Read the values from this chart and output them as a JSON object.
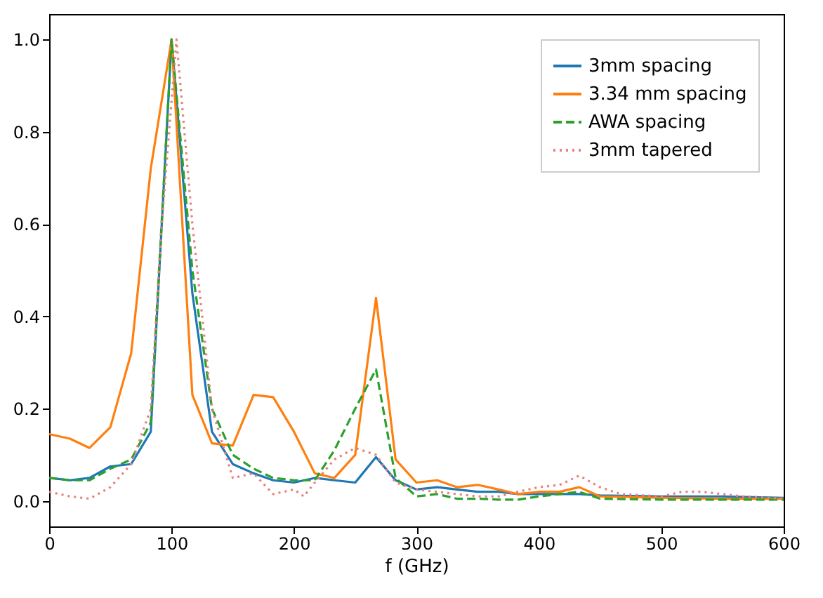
{
  "chart_data": {
    "type": "line",
    "xlabel": "f (GHz)",
    "xlim": [
      0,
      600
    ],
    "xticks": [
      0,
      100,
      200,
      300,
      400,
      500,
      600
    ],
    "ylim": [
      -0.055,
      1.055
    ],
    "yticks": [
      {
        "value": 0,
        "label": "0.0"
      },
      {
        "value": 0.2,
        "label": "0.2"
      },
      {
        "value": 0.4,
        "label": "0.4"
      },
      {
        "value": 0.6,
        "label": "0.6"
      },
      {
        "value": 0.8,
        "label": "0.8"
      },
      {
        "value": 1,
        "label": "1.0"
      }
    ],
    "legend": "top right",
    "grid": false,
    "series": [
      {
        "name": "3mm spacing",
        "color": "#1f77b4",
        "line_style": "solid",
        "x": [
          0,
          17,
          33,
          50,
          67,
          83,
          100,
          117,
          133,
          150,
          167,
          183,
          200,
          217,
          233,
          250,
          267,
          283,
          300,
          317,
          333,
          350,
          367,
          383,
          400,
          417,
          433,
          450,
          500,
          550,
          600
        ],
        "values": [
          0.05,
          0.045,
          0.05,
          0.075,
          0.08,
          0.15,
          1.0,
          0.45,
          0.15,
          0.08,
          0.06,
          0.045,
          0.04,
          0.05,
          0.045,
          0.04,
          0.095,
          0.045,
          0.025,
          0.03,
          0.025,
          0.02,
          0.02,
          0.015,
          0.015,
          0.015,
          0.015,
          0.012,
          0.01,
          0.01,
          0.007
        ]
      },
      {
        "name": "3.34 mm spacing",
        "color": "#ff7f0e",
        "line_style": "solid",
        "x": [
          0,
          17,
          33,
          50,
          67,
          83,
          100,
          117,
          133,
          150,
          167,
          183,
          200,
          217,
          233,
          250,
          267,
          283,
          300,
          317,
          333,
          350,
          367,
          383,
          400,
          417,
          433,
          450,
          500,
          550,
          600
        ],
        "values": [
          0.145,
          0.135,
          0.115,
          0.16,
          0.32,
          0.72,
          1.0,
          0.23,
          0.125,
          0.12,
          0.23,
          0.225,
          0.15,
          0.06,
          0.05,
          0.1,
          0.44,
          0.09,
          0.04,
          0.045,
          0.03,
          0.035,
          0.025,
          0.015,
          0.02,
          0.02,
          0.03,
          0.01,
          0.007,
          0.005,
          0.005
        ]
      },
      {
        "name": "AWA spacing",
        "color": "#2ca02c",
        "line_style": "dashed",
        "x": [
          0,
          17,
          33,
          50,
          67,
          83,
          100,
          117,
          133,
          150,
          167,
          183,
          200,
          217,
          233,
          250,
          267,
          283,
          300,
          317,
          333,
          350,
          367,
          383,
          400,
          417,
          433,
          450,
          500,
          550,
          600
        ],
        "values": [
          0.05,
          0.045,
          0.045,
          0.07,
          0.09,
          0.17,
          1.0,
          0.5,
          0.2,
          0.1,
          0.07,
          0.05,
          0.045,
          0.045,
          0.11,
          0.2,
          0.285,
          0.05,
          0.01,
          0.015,
          0.005,
          0.005,
          0.003,
          0.003,
          0.01,
          0.015,
          0.02,
          0.005,
          0.003,
          0.003,
          0.003
        ]
      },
      {
        "name": "3mm tapered",
        "color": "#e8807c",
        "line_style": "dotted",
        "x": [
          0,
          17,
          33,
          50,
          67,
          83,
          92,
          104,
          117,
          133,
          150,
          167,
          183,
          200,
          208,
          217,
          233,
          250,
          267,
          283,
          300,
          317,
          333,
          350,
          367,
          383,
          400,
          417,
          433,
          450,
          467,
          500,
          517,
          533,
          567,
          600
        ],
        "values": [
          0.02,
          0.01,
          0.005,
          0.03,
          0.08,
          0.2,
          0.6,
          1.0,
          0.6,
          0.2,
          0.05,
          0.06,
          0.015,
          0.025,
          0.01,
          0.04,
          0.09,
          0.115,
          0.1,
          0.04,
          0.025,
          0.02,
          0.015,
          0.01,
          0.01,
          0.02,
          0.03,
          0.035,
          0.055,
          0.03,
          0.015,
          0.01,
          0.02,
          0.02,
          0.01,
          0.005
        ]
      }
    ]
  }
}
